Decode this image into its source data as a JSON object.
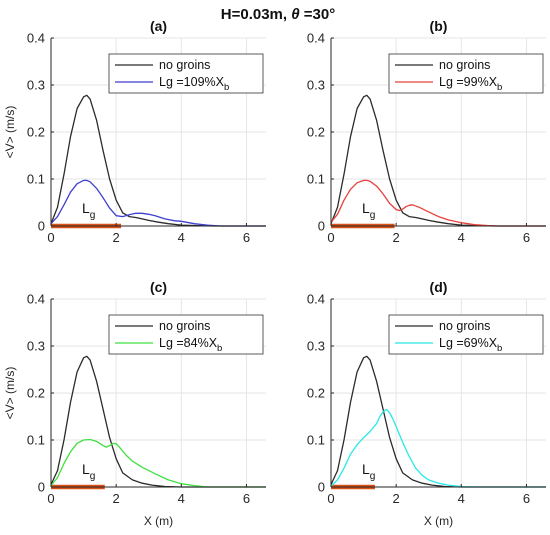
{
  "figure": {
    "title_prefix": "H=0.03m, ",
    "title_theta": "θ",
    "title_suffix": " =30°"
  },
  "axes": {
    "xlabel": "X (m)",
    "ylabel": "<V> (m/s)",
    "xlim": [
      0,
      6.6
    ],
    "ylim": [
      0,
      0.4
    ],
    "xticks": [
      "0",
      "2",
      "4",
      "6"
    ],
    "yticks": [
      "0",
      "0.1",
      "0.2",
      "0.3",
      "0.4"
    ],
    "grid": true
  },
  "legend_ref_label": "no groins",
  "lg_marker": {
    "text": "L",
    "sub": "g"
  },
  "colors": {
    "reference": "#2b2b2b",
    "groin_bar": "#d95319",
    "axis": "#262626",
    "grid": "#e6e6e6"
  },
  "chart_data": [
    {
      "type": "line",
      "title": "(a)",
      "xlabel": "",
      "ylabel": "<V> (m/s)",
      "groin_length": 2.15,
      "legend": {
        "position": "top-right",
        "prefix": "Lg =109%X",
        "sub": "b"
      },
      "series": [
        {
          "name": "no groins",
          "color": "#2b2b2b",
          "x": [
            0,
            0.2,
            0.4,
            0.6,
            0.8,
            1.0,
            1.1,
            1.2,
            1.4,
            1.6,
            1.8,
            2.0,
            2.2,
            2.4,
            2.6,
            2.8,
            3.0,
            3.3,
            3.6,
            4.0,
            4.4,
            5.0,
            6.6
          ],
          "y": [
            0.005,
            0.04,
            0.11,
            0.19,
            0.25,
            0.275,
            0.278,
            0.27,
            0.225,
            0.16,
            0.1,
            0.055,
            0.028,
            0.02,
            0.018,
            0.015,
            0.012,
            0.008,
            0.005,
            0.002,
            0.001,
            0,
            0
          ]
        },
        {
          "name": "Lg =109%Xb",
          "color": "#3f3fd0",
          "x": [
            0,
            0.2,
            0.4,
            0.6,
            0.8,
            1.0,
            1.1,
            1.2,
            1.4,
            1.6,
            1.8,
            2.0,
            2.2,
            2.4,
            2.6,
            2.8,
            3.0,
            3.2,
            3.5,
            3.8,
            4.0,
            4.4,
            4.8,
            5.2,
            6.6
          ],
          "y": [
            0.005,
            0.02,
            0.045,
            0.072,
            0.09,
            0.097,
            0.097,
            0.094,
            0.08,
            0.06,
            0.038,
            0.022,
            0.02,
            0.024,
            0.027,
            0.027,
            0.025,
            0.022,
            0.015,
            0.011,
            0.01,
            0.005,
            0.002,
            0,
            0
          ]
        }
      ]
    },
    {
      "type": "line",
      "title": "(b)",
      "xlabel": "",
      "ylabel": "",
      "groin_length": 1.95,
      "legend": {
        "position": "top-right",
        "prefix": "Lg =99%X",
        "sub": "b"
      },
      "series": [
        {
          "name": "no groins",
          "color": "#2b2b2b",
          "x": [
            0,
            0.2,
            0.4,
            0.6,
            0.8,
            1.0,
            1.1,
            1.2,
            1.4,
            1.6,
            1.8,
            2.0,
            2.2,
            2.4,
            2.6,
            2.8,
            3.0,
            3.3,
            3.6,
            4.0,
            4.4,
            5.0,
            6.6
          ],
          "y": [
            0.005,
            0.04,
            0.11,
            0.19,
            0.25,
            0.275,
            0.278,
            0.27,
            0.225,
            0.16,
            0.1,
            0.055,
            0.028,
            0.02,
            0.018,
            0.015,
            0.012,
            0.008,
            0.005,
            0.002,
            0.001,
            0,
            0
          ]
        },
        {
          "name": "Lg =99%Xb",
          "color": "#e8403a",
          "x": [
            0,
            0.2,
            0.4,
            0.6,
            0.8,
            1.0,
            1.1,
            1.2,
            1.4,
            1.6,
            1.8,
            2.0,
            2.1,
            2.2,
            2.3,
            2.4,
            2.5,
            2.7,
            3.0,
            3.3,
            3.6,
            4.0,
            4.4,
            4.8,
            5.2,
            6.6
          ],
          "y": [
            0.008,
            0.025,
            0.055,
            0.078,
            0.092,
            0.097,
            0.097,
            0.095,
            0.085,
            0.068,
            0.048,
            0.035,
            0.033,
            0.036,
            0.041,
            0.044,
            0.045,
            0.04,
            0.03,
            0.02,
            0.013,
            0.007,
            0.003,
            0.001,
            0,
            0
          ]
        }
      ]
    },
    {
      "type": "line",
      "title": "(c)",
      "xlabel": "X (m)",
      "ylabel": "<V> (m/s)",
      "groin_length": 1.65,
      "legend": {
        "position": "top-right",
        "prefix": "Lg =84%X",
        "sub": "b"
      },
      "series": [
        {
          "name": "no groins",
          "color": "#2b2b2b",
          "x": [
            0,
            0.2,
            0.4,
            0.6,
            0.8,
            1.0,
            1.1,
            1.2,
            1.4,
            1.6,
            1.8,
            2.0,
            2.2,
            2.5,
            2.8,
            3.1,
            3.5,
            4.0,
            4.5,
            6.6
          ],
          "y": [
            0.005,
            0.035,
            0.1,
            0.18,
            0.245,
            0.275,
            0.278,
            0.27,
            0.225,
            0.165,
            0.105,
            0.06,
            0.03,
            0.015,
            0.008,
            0.004,
            0.001,
            0,
            0,
            0
          ]
        },
        {
          "name": "Lg =84%Xb",
          "color": "#40e040",
          "x": [
            0,
            0.2,
            0.4,
            0.6,
            0.8,
            1.0,
            1.2,
            1.4,
            1.6,
            1.7,
            1.8,
            1.9,
            2.0,
            2.1,
            2.3,
            2.5,
            2.8,
            3.2,
            3.6,
            4.0,
            4.4,
            4.8,
            6.6
          ],
          "y": [
            0.003,
            0.02,
            0.05,
            0.075,
            0.093,
            0.1,
            0.101,
            0.097,
            0.088,
            0.085,
            0.088,
            0.093,
            0.092,
            0.085,
            0.068,
            0.055,
            0.042,
            0.028,
            0.015,
            0.007,
            0.003,
            0,
            0
          ]
        }
      ]
    },
    {
      "type": "line",
      "title": "(d)",
      "xlabel": "X (m)",
      "ylabel": "",
      "groin_length": 1.35,
      "legend": {
        "position": "top-right",
        "prefix": "Lg =69%X",
        "sub": "b"
      },
      "series": [
        {
          "name": "no groins",
          "color": "#2b2b2b",
          "x": [
            0,
            0.2,
            0.4,
            0.6,
            0.8,
            1.0,
            1.1,
            1.2,
            1.4,
            1.6,
            1.8,
            2.0,
            2.2,
            2.5,
            2.8,
            3.1,
            3.5,
            4.0,
            4.5,
            6.6
          ],
          "y": [
            0.005,
            0.035,
            0.1,
            0.18,
            0.245,
            0.275,
            0.278,
            0.27,
            0.225,
            0.165,
            0.105,
            0.06,
            0.03,
            0.015,
            0.008,
            0.004,
            0.001,
            0,
            0,
            0
          ]
        },
        {
          "name": "Lg =69%Xb",
          "color": "#28e8e8",
          "x": [
            0,
            0.2,
            0.4,
            0.6,
            0.8,
            1.0,
            1.2,
            1.4,
            1.5,
            1.6,
            1.7,
            1.8,
            1.9,
            2.0,
            2.2,
            2.4,
            2.6,
            2.8,
            3.0,
            3.3,
            3.6,
            4.0,
            4.4,
            6.6
          ],
          "y": [
            0.002,
            0.015,
            0.04,
            0.07,
            0.09,
            0.105,
            0.118,
            0.135,
            0.15,
            0.16,
            0.165,
            0.158,
            0.145,
            0.128,
            0.095,
            0.065,
            0.04,
            0.025,
            0.015,
            0.008,
            0.004,
            0.001,
            0,
            0
          ]
        }
      ]
    }
  ]
}
